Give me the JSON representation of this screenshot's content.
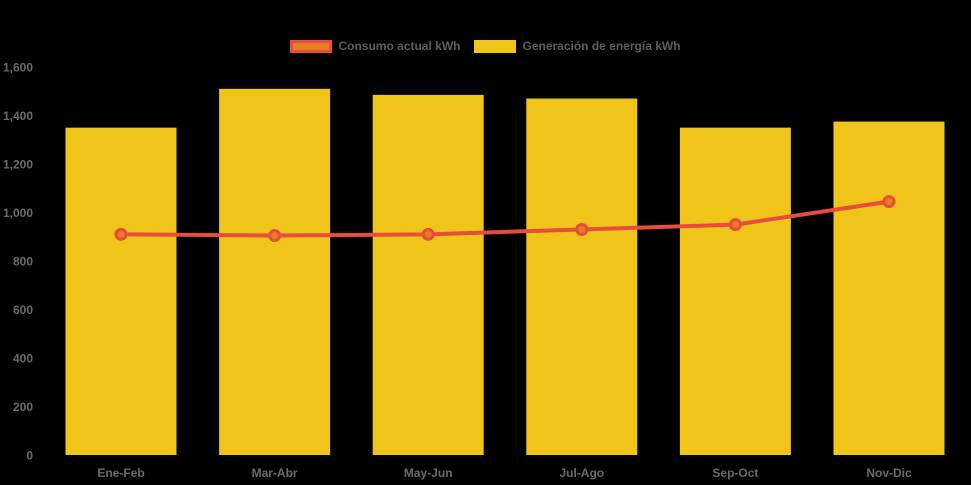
{
  "legend": {
    "items": [
      {
        "label": "Consumo actual kWh"
      },
      {
        "label": "Generación de energía kWh"
      }
    ]
  },
  "colors": {
    "background": "#000000",
    "bar": "#F0C419",
    "line": "#E74C3C",
    "marker_fill": "#E67E22",
    "axis_text": "#6b6b6b"
  },
  "chart_data": {
    "type": "bar",
    "title": "",
    "xlabel": "",
    "ylabel": "",
    "categories": [
      "Ene-Feb",
      "Mar-Abr",
      "May-Jun",
      "Jul-Ago",
      "Sep-Oct",
      "Nov-Dic"
    ],
    "series": [
      {
        "name": "Consumo actual kWh",
        "type": "line",
        "values": [
          910,
          905,
          910,
          930,
          950,
          1045
        ]
      },
      {
        "name": "Generación de energía kWh",
        "type": "bar",
        "values": [
          1350,
          1510,
          1485,
          1470,
          1350,
          1375
        ]
      }
    ],
    "ylim": [
      0,
      1600
    ],
    "ytick_step": 200,
    "ytick_labels": [
      "0",
      "200",
      "400",
      "600",
      "800",
      "1,000",
      "1,200",
      "1,400",
      "1,600"
    ],
    "grid": false,
    "legend_position": "top-center"
  }
}
